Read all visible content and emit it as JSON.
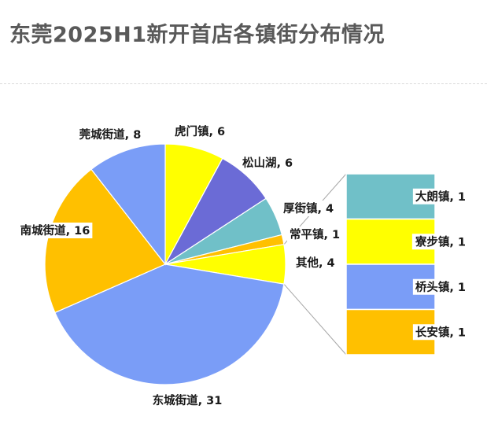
{
  "title": "东莞2025H1新开首店各镇街分布情况",
  "chart_data": {
    "type": "pie",
    "subtype": "pie-of-pie (stacked bar of pie)",
    "title": "东莞2025H1新开首店各镇街分布情况",
    "main_pie": [
      {
        "name": "虎门镇",
        "value": 6,
        "color": "#ffff00"
      },
      {
        "name": "松山湖",
        "value": 6,
        "color": "#6b6bd6"
      },
      {
        "name": "厚街镇",
        "value": 4,
        "color": "#70c0c8"
      },
      {
        "name": "常平镇",
        "value": 1,
        "color": "#ffc000"
      },
      {
        "name": "其他",
        "value": 4,
        "color": "#ffff00"
      },
      {
        "name": "东城街道",
        "value": 31,
        "color": "#7a9df7"
      },
      {
        "name": "南城街道",
        "value": 16,
        "color": "#ffc000"
      },
      {
        "name": "莞城街道",
        "value": 8,
        "color": "#7a9df7"
      }
    ],
    "other_breakdown": [
      {
        "name": "大朗镇",
        "value": 1,
        "color": "#70c0c8"
      },
      {
        "name": "寮步镇",
        "value": 1,
        "color": "#ffff00"
      },
      {
        "name": "桥头镇",
        "value": 1,
        "color": "#7a9df7"
      },
      {
        "name": "长安镇",
        "value": 1,
        "color": "#ffc000"
      }
    ],
    "label_separator": ", "
  }
}
